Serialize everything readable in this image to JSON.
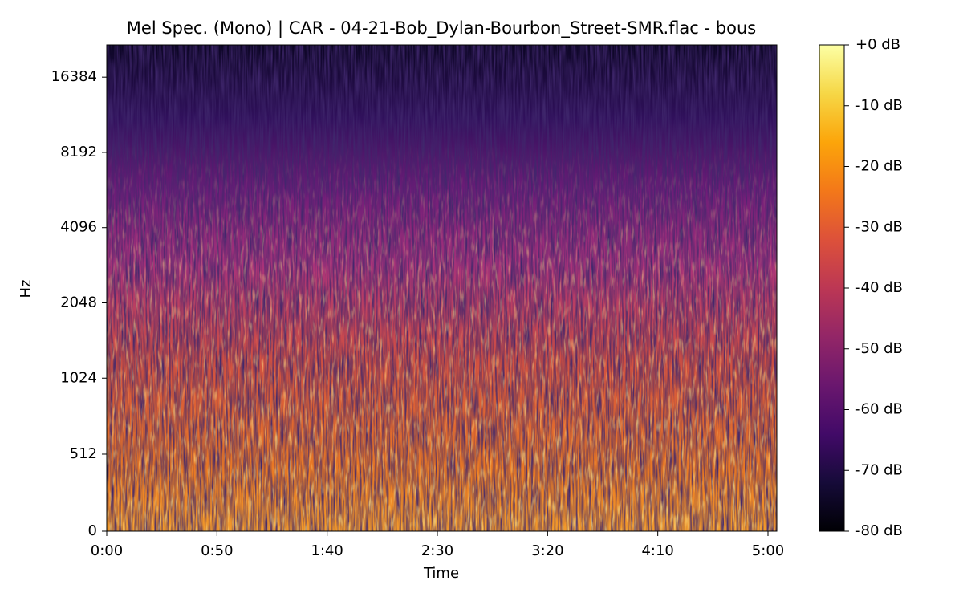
{
  "chart_data": {
    "type": "spectrogram",
    "title": "Mel Spec. (Mono) | CAR - 04-21-Bob_Dylan-Bourbon_Street-SMR.flac - bous",
    "x_label": "Time",
    "y_label": "Hz",
    "xlim": [
      0,
      304
    ],
    "xticks": [
      {
        "value": 0,
        "label": "0:00"
      },
      {
        "value": 50,
        "label": "0:50"
      },
      {
        "value": 100,
        "label": "1:40"
      },
      {
        "value": 150,
        "label": "2:30"
      },
      {
        "value": 200,
        "label": "3:20"
      },
      {
        "value": 250,
        "label": "4:10"
      },
      {
        "value": 300,
        "label": "5:00"
      }
    ],
    "ylim": [
      0,
      22050
    ],
    "y_scale": "symlog",
    "y_base": 2,
    "y_linthresh": 1000,
    "y_linscale": 1,
    "yticks": [
      0,
      512,
      1024,
      2048,
      4096,
      8192,
      16384
    ],
    "colormap": "inferno",
    "colorbar_lim": [
      -80,
      0
    ],
    "colorbar_ticks": [
      {
        "value": 0,
        "label": "+0 dB"
      },
      {
        "value": -10,
        "label": "-10 dB"
      },
      {
        "value": -20,
        "label": "-20 dB"
      },
      {
        "value": -30,
        "label": "-30 dB"
      },
      {
        "value": -40,
        "label": "-40 dB"
      },
      {
        "value": -50,
        "label": "-50 dB"
      },
      {
        "value": -60,
        "label": "-60 dB"
      },
      {
        "value": -70,
        "label": "-70 dB"
      },
      {
        "value": -80,
        "label": "-80 dB"
      }
    ]
  }
}
